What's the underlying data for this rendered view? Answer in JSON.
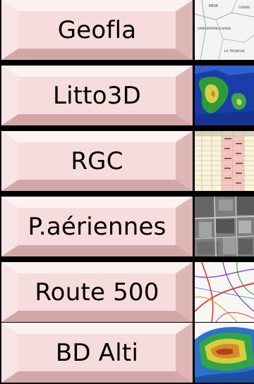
{
  "items": [
    {
      "label": "Geofla",
      "thumb": "map-icon"
    },
    {
      "label": "Litto3D",
      "thumb": "terrain-icon"
    },
    {
      "label": "RGC",
      "thumb": "spreadsheet-icon"
    },
    {
      "label": "P.aériennes",
      "thumb": "aerial-photo-icon"
    },
    {
      "label": "Route 500",
      "thumb": "road-map-icon"
    },
    {
      "label": "BD Alti",
      "thumb": "elevation-icon"
    }
  ],
  "thumb_text": {
    "geofla_a": "SAINT-MARTIN-D-HINDE",
    "geofla_b": "LA TRONCHE",
    "geofla_c": "REVE",
    "geofla_d": "CORENC"
  },
  "colors": {
    "button_face": "#f6dcdc",
    "button_light": "#fdf2f2",
    "button_shadow": "#d7aaaa",
    "background": "#000000"
  }
}
